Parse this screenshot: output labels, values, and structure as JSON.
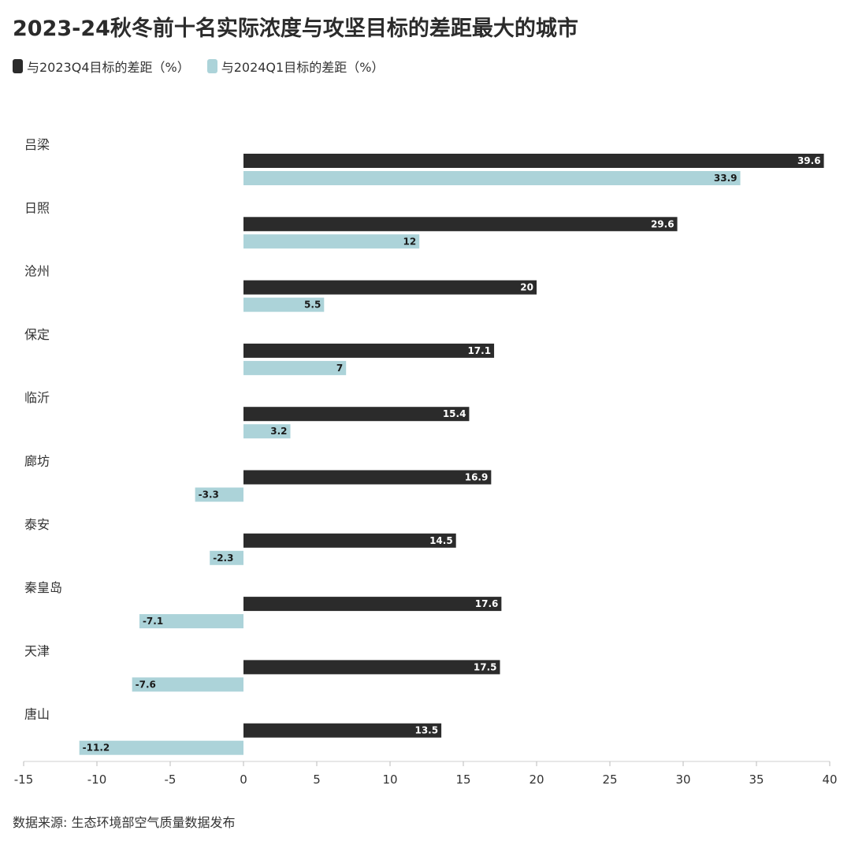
{
  "title": "2023-24秋冬前十名实际浓度与攻坚目标的差距最大的城市",
  "source": "数据来源: 生态环境部空气质量数据发布",
  "colors": {
    "series1": "#2b2b2b",
    "series2": "#acd3d9"
  },
  "chart_data": {
    "type": "bar",
    "orientation": "horizontal",
    "title": "2023-24秋冬前十名实际浓度与攻坚目标的差距最大的城市",
    "categories": [
      "吕梁",
      "日照",
      "沧州",
      "保定",
      "临沂",
      "廊坊",
      "泰安",
      "秦皇岛",
      "天津",
      "唐山"
    ],
    "series": [
      {
        "name": "与2023Q4目标的差距（%）",
        "values": [
          39.6,
          29.6,
          20,
          17.1,
          15.4,
          16.9,
          14.5,
          17.6,
          17.5,
          13.5
        ]
      },
      {
        "name": "与2024Q1目标的差距（%）",
        "values": [
          33.9,
          12,
          5.5,
          7,
          3.2,
          -3.3,
          -2.3,
          -7.1,
          -7.6,
          -11.2
        ]
      }
    ],
    "xlim": [
      -15,
      40
    ],
    "xticks": [
      -15,
      -10,
      -5,
      0,
      5,
      10,
      15,
      20,
      25,
      30,
      35,
      40
    ],
    "legend_position": "top-left",
    "grid": false
  }
}
